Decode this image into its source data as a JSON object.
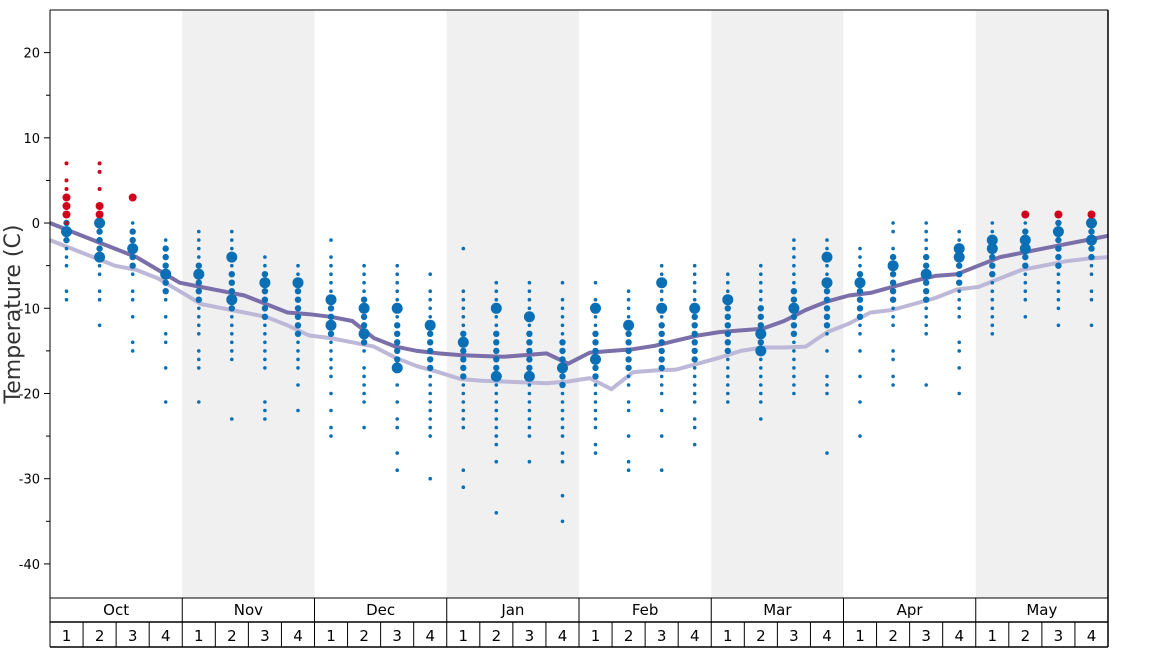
{
  "chart_data": {
    "type": "scatter",
    "ylabel": "Temperature (C)",
    "ylim": [
      -44,
      25
    ],
    "yticks": [
      20,
      10,
      0,
      -10,
      -20,
      -30,
      -40
    ],
    "ytick_labels": [
      "20",
      "10",
      "0",
      "-10",
      "-20",
      "-30",
      "-40"
    ],
    "months": [
      "Oct",
      "Nov",
      "Dec",
      "Jan",
      "Feb",
      "Mar",
      "Apr",
      "May"
    ],
    "weeks": [
      "1",
      "2",
      "3",
      "4"
    ],
    "colors": {
      "point": "#0a6fb5",
      "point_hot": "#d0021b",
      "line_avg": "#7a6fa8",
      "line_avg_light": "#bdb8d8",
      "band": "#f0f0f0",
      "axis": "#000000"
    },
    "series": [
      {
        "values": [
          -2,
          -3,
          -4,
          -5,
          -5.5,
          -6.5,
          -8,
          -9.5,
          -10,
          -10.5,
          -11,
          -12,
          -13.2,
          -13.5,
          -14,
          -14.5,
          -15.8,
          -16.8,
          -17.5,
          -18.3,
          -18.5,
          -18.6,
          -18.7,
          -18.8,
          -18.6,
          -18.2,
          -19.5,
          -17.5,
          -17.3,
          -17.2,
          -16.5,
          -15.8,
          -15,
          -14.6,
          -14.6,
          -14.5,
          -12.8,
          -11.8,
          -10.5,
          -10.2,
          -9.5,
          -8.8,
          -7.8,
          -7.5,
          -6.5,
          -5.5,
          -5,
          -4.5,
          -4.2,
          -4
        ]
      },
      {
        "values": [
          0,
          -1,
          -2,
          -3,
          -4,
          -5.5,
          -7,
          -7.5,
          -8,
          -8.5,
          -9.5,
          -10.5,
          -10.7,
          -11,
          -11.5,
          -13.5,
          -14.5,
          -15,
          -15.3,
          -15.5,
          -15.6,
          -15.7,
          -15.5,
          -15.3,
          -16.5,
          -15.2,
          -15,
          -14.8,
          -14.4,
          -13.8,
          -13.2,
          -12.8,
          -12.6,
          -12.4,
          -11.5,
          -10.2,
          -9.2,
          -8.5,
          -8.2,
          -7.5,
          -6.8,
          -6.2,
          -6,
          -5,
          -4,
          -3.5,
          -3,
          -2.5,
          -2,
          -1.5
        ]
      }
    ],
    "weekly_points": [
      [
        -9,
        -8,
        -5,
        -4,
        -3,
        -2,
        -1,
        0
      ],
      [
        -12,
        -9,
        -8,
        -6,
        -5,
        -4,
        -3,
        -2,
        -1,
        0
      ],
      [
        -15,
        -14,
        -11,
        -9,
        -8,
        -6,
        -5,
        -4,
        -3,
        -2,
        -1,
        0
      ],
      [
        -21,
        -17,
        -14,
        -13,
        -11,
        -9,
        -8,
        -7,
        -6,
        -5,
        -4,
        -3,
        -2
      ],
      [
        -21,
        -17,
        -16,
        -15,
        -13,
        -12,
        -11,
        -10,
        -9,
        -8,
        -7,
        -6,
        -5,
        -4,
        -3,
        -2,
        -1
      ],
      [
        -23,
        -16,
        -15,
        -14,
        -13,
        -12,
        -11,
        -10,
        -9,
        -8,
        -7,
        -6,
        -5,
        -4,
        -3,
        -2,
        -1
      ],
      [
        -23,
        -22,
        -21,
        -17,
        -16,
        -15,
        -14,
        -13,
        -12,
        -11,
        -10,
        -9,
        -8,
        -7,
        -6,
        -5,
        -4
      ],
      [
        -22,
        -19,
        -17,
        -16,
        -15,
        -14,
        -13,
        -12,
        -11,
        -10,
        -9,
        -8,
        -7,
        -6,
        -5
      ],
      [
        -25,
        -24,
        -22,
        -20,
        -18,
        -17,
        -16,
        -15,
        -14,
        -13,
        -12,
        -11,
        -10,
        -9,
        -8,
        -7,
        -6,
        -5,
        -4,
        -2
      ],
      [
        -24,
        -21,
        -20,
        -19,
        -18,
        -17,
        -15,
        -14,
        -13,
        -12,
        -11,
        -10,
        -9,
        -8,
        -7,
        -6,
        -5
      ],
      [
        -29,
        -27,
        -24,
        -23,
        -21,
        -19,
        -17,
        -16,
        -15,
        -14,
        -13,
        -12,
        -11,
        -10,
        -9,
        -8,
        -7,
        -6,
        -5
      ],
      [
        -30,
        -25,
        -24,
        -23,
        -22,
        -21,
        -20,
        -19,
        -18,
        -17,
        -16,
        -15,
        -14,
        -13,
        -12,
        -11,
        -10,
        -9,
        -8,
        -6
      ],
      [
        -31,
        -29,
        -24,
        -23,
        -22,
        -21,
        -20,
        -19,
        -18,
        -17,
        -16,
        -15,
        -14,
        -13,
        -12,
        -11,
        -10,
        -9,
        -8,
        -3
      ],
      [
        -34,
        -28,
        -26,
        -25,
        -24,
        -23,
        -22,
        -21,
        -20,
        -19,
        -18,
        -17,
        -16,
        -15,
        -14,
        -13,
        -12,
        -11,
        -10,
        -9,
        -8,
        -7
      ],
      [
        -28,
        -25,
        -24,
        -23,
        -22,
        -21,
        -20,
        -19,
        -18,
        -17,
        -16,
        -15,
        -14,
        -13,
        -12,
        -11,
        -10,
        -9,
        -8,
        -7
      ],
      [
        -35,
        -32,
        -28,
        -27,
        -25,
        -24,
        -23,
        -22,
        -21,
        -20,
        -19,
        -18,
        -17,
        -16,
        -15,
        -14,
        -13,
        -12,
        -11,
        -10,
        -9,
        -7
      ],
      [
        -27,
        -26,
        -24,
        -23,
        -22,
        -21,
        -20,
        -19,
        -18,
        -17,
        -16,
        -15,
        -14,
        -13,
        -12,
        -11,
        -10,
        -9,
        -7
      ],
      [
        -29,
        -28,
        -25,
        -22,
        -21,
        -19,
        -18,
        -17,
        -16,
        -15,
        -14,
        -13,
        -12,
        -11,
        -10,
        -9,
        -8
      ],
      [
        -29,
        -25,
        -22,
        -20,
        -19,
        -18,
        -17,
        -16,
        -15,
        -14,
        -13,
        -12,
        -11,
        -10,
        -9,
        -8,
        -7,
        -6,
        -5
      ],
      [
        -26,
        -24,
        -23,
        -21,
        -20,
        -19,
        -18,
        -17,
        -16,
        -15,
        -14,
        -13,
        -12,
        -11,
        -10,
        -9,
        -8,
        -7,
        -6,
        -5
      ],
      [
        -21,
        -20,
        -19,
        -18,
        -17,
        -16,
        -15,
        -14,
        -13,
        -12,
        -11,
        -10,
        -9,
        -8,
        -7,
        -6
      ],
      [
        -23,
        -21,
        -20,
        -19,
        -18,
        -17,
        -16,
        -15,
        -14,
        -13,
        -12,
        -11,
        -10,
        -9,
        -8,
        -7,
        -6,
        -5
      ],
      [
        -20,
        -19,
        -18,
        -17,
        -16,
        -15,
        -14,
        -13,
        -12,
        -11,
        -10,
        -9,
        -8,
        -7,
        -6,
        -5,
        -4,
        -3,
        -2
      ],
      [
        -27,
        -20,
        -19,
        -18,
        -15,
        -13,
        -12,
        -11,
        -10,
        -9,
        -8,
        -7,
        -6,
        -5,
        -4,
        -3,
        -2
      ],
      [
        -25,
        -21,
        -18,
        -15,
        -13,
        -12,
        -11,
        -10,
        -9,
        -8,
        -7,
        -6,
        -5,
        -4,
        -3
      ],
      [
        -19,
        -18,
        -16,
        -15,
        -12,
        -11,
        -10,
        -9,
        -8,
        -7,
        -6,
        -5,
        -4,
        -3,
        -1,
        0
      ],
      [
        -19,
        -13,
        -12,
        -11,
        -10,
        -9,
        -8,
        -7,
        -6,
        -5,
        -4,
        -3,
        -2,
        -1,
        0
      ],
      [
        -20,
        -17,
        -15,
        -14,
        -11,
        -10,
        -9,
        -8,
        -7,
        -6,
        -5,
        -4,
        -3,
        -2,
        -1
      ],
      [
        -13,
        -12,
        -11,
        -10,
        -9,
        -8,
        -7,
        -6,
        -5,
        -4,
        -3,
        -2,
        -1,
        0
      ],
      [
        -11,
        -9,
        -8,
        -7,
        -6,
        -5,
        -4,
        -3,
        -2,
        -1,
        0,
        1
      ],
      [
        -12,
        -10,
        -9,
        -8,
        -7,
        -6,
        -5,
        -4,
        -3,
        -2,
        -1,
        0,
        1
      ],
      [
        -12,
        -9,
        -8,
        -6,
        -5,
        -4,
        -3,
        -2,
        -1,
        0,
        1
      ]
    ],
    "hot_points": [
      [
        0,
        1,
        2,
        3,
        4,
        5,
        7
      ],
      [
        1,
        2,
        4,
        6,
        7
      ],
      [
        3
      ],
      [],
      [],
      [],
      [],
      [],
      [],
      [],
      [],
      [],
      [],
      [],
      [],
      [],
      [],
      [],
      [],
      [],
      [],
      [],
      [],
      [],
      [],
      [],
      [],
      [],
      [],
      [
        1
      ],
      [
        1
      ],
      [
        1
      ]
    ],
    "big_points": [
      [
        -1
      ],
      [
        -4,
        0
      ],
      [
        -3
      ],
      [
        -6
      ],
      [
        -6
      ],
      [
        -9,
        -4
      ],
      [
        -7
      ],
      [
        -7
      ],
      [
        -9,
        -12
      ],
      [
        -10,
        -13
      ],
      [
        -10,
        -17
      ],
      [
        -12
      ],
      [
        -14
      ],
      [
        -10,
        -18
      ],
      [
        -11,
        -18
      ],
      [
        -17
      ],
      [
        -10,
        -16
      ],
      [
        -12
      ],
      [
        -10,
        -7
      ],
      [
        -10
      ],
      [
        -9
      ],
      [
        -13,
        -15
      ],
      [
        -10
      ],
      [
        -7,
        -4
      ],
      [
        -7
      ],
      [
        -5
      ],
      [
        -6
      ],
      [
        -3,
        -4
      ],
      [
        -2,
        -3
      ],
      [
        -2,
        -3
      ],
      [
        -1
      ],
      [
        -2,
        0
      ]
    ]
  }
}
